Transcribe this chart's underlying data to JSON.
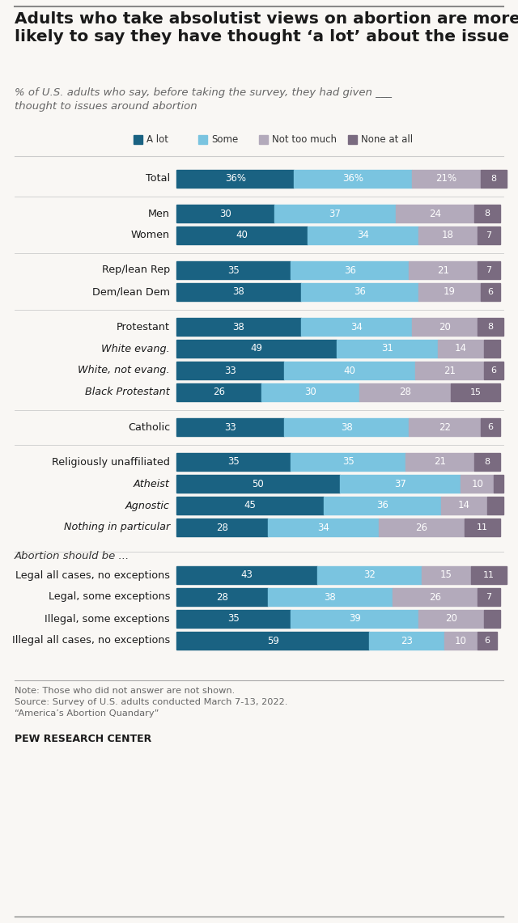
{
  "title": "Adults who take absolutist views on abortion are more\nlikely to say they have thought ‘a lot’ about the issue",
  "subtitle": "% of U.S. adults who say, before taking the survey, they had given ___\nthought to issues around abortion",
  "categories": [
    "Total",
    "Men",
    "Women",
    "Rep/lean Rep",
    "Dem/lean Dem",
    "Protestant",
    "White evang.",
    "White, not evang.",
    "Black Protestant",
    "Catholic",
    "Religiously unaffiliated",
    "Atheist",
    "Agnostic",
    "Nothing in particular",
    "Legal all cases, no exceptions",
    "Legal, some exceptions",
    "Illegal, some exceptions",
    "Illegal all cases, no exceptions"
  ],
  "italic_categories": [
    "White evang.",
    "White, not evang.",
    "Black Protestant",
    "Atheist",
    "Agnostic",
    "Nothing in particular"
  ],
  "values": {
    "a_lot": [
      36,
      30,
      40,
      35,
      38,
      38,
      49,
      33,
      26,
      33,
      35,
      50,
      45,
      28,
      43,
      28,
      35,
      59
    ],
    "some": [
      36,
      37,
      34,
      36,
      36,
      34,
      31,
      40,
      30,
      38,
      35,
      37,
      36,
      34,
      32,
      38,
      39,
      23
    ],
    "not_too": [
      21,
      24,
      18,
      21,
      19,
      20,
      14,
      21,
      28,
      22,
      21,
      10,
      14,
      26,
      15,
      26,
      20,
      10
    ],
    "none": [
      8,
      8,
      7,
      7,
      6,
      8,
      5,
      6,
      15,
      6,
      8,
      3,
      5,
      11,
      11,
      7,
      5,
      6
    ]
  },
  "colors": {
    "a_lot": "#1a6282",
    "some": "#7ac4e0",
    "not_too": "#b3aabb",
    "none": "#7a6b80"
  },
  "legend_labels": [
    "A lot",
    "Some",
    "Not too much",
    "None at all"
  ],
  "section_label": "Abortion should be ...",
  "note": "Note: Those who did not answer are not shown.\nSource: Survey of U.S. adults conducted March 7-13, 2022.\n“America’s Abortion Quandary”",
  "source_bold": "PEW RESEARCH CENTER",
  "background_color": "#f9f7f4",
  "group_gaps": [
    0,
    1,
    0,
    1,
    0,
    1,
    0,
    0,
    0,
    1,
    1,
    0,
    0,
    0,
    2,
    0,
    0,
    0
  ]
}
